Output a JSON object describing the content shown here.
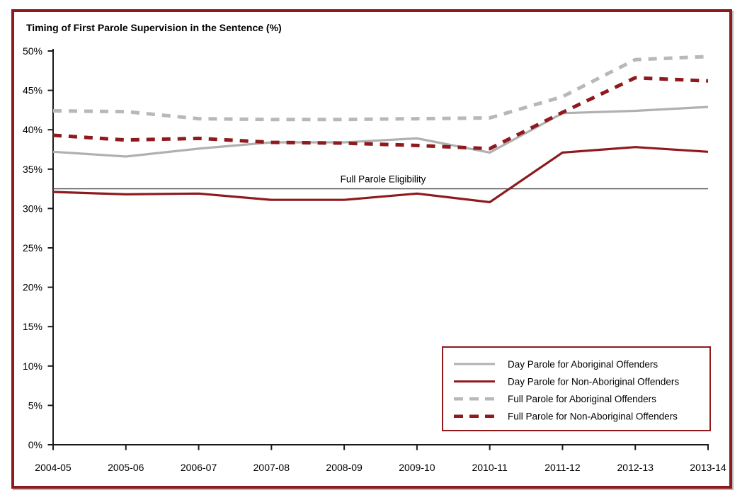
{
  "title": "Timing of First Parole Supervision in the Sentence (%)",
  "frame": {
    "border_color": "#8E1A1D",
    "background": "#FFFFFF"
  },
  "chart_data": {
    "type": "line",
    "title": "Timing of First Parole Supervision in the Sentence (%)",
    "xlabel": "",
    "ylabel": "",
    "grid": false,
    "categories": [
      "2004-05",
      "2005-06",
      "2006-07",
      "2007-08",
      "2008-09",
      "2009-10",
      "2010-11",
      "2011-12",
      "2012-13",
      "2013-14"
    ],
    "series": [
      {
        "name": "Day Parole for Aboriginal Offenders",
        "color": "#B0B0B0",
        "style": "solid",
        "values": [
          37.2,
          36.6,
          37.6,
          38.4,
          38.4,
          38.9,
          37.1,
          42.1,
          42.4,
          42.9
        ]
      },
      {
        "name": "Day Parole for Non-Aboriginal Offenders",
        "color": "#8E1A1D",
        "style": "solid",
        "values": [
          32.1,
          31.8,
          31.9,
          31.1,
          31.1,
          31.9,
          30.8,
          37.1,
          37.8,
          37.2
        ]
      },
      {
        "name": "Full Parole for Aboriginal Offenders",
        "color": "#B8B8B8",
        "style": "dashed",
        "values": [
          42.4,
          42.3,
          41.4,
          41.3,
          41.3,
          41.4,
          41.5,
          44.2,
          48.9,
          49.3
        ]
      },
      {
        "name": "Full Parole for Non-Aboriginal Offenders",
        "color": "#8E1A1D",
        "style": "dashed",
        "values": [
          39.3,
          38.7,
          38.9,
          38.4,
          38.3,
          38.0,
          37.6,
          42.2,
          46.6,
          46.2
        ]
      }
    ],
    "reference_line": {
      "label": "Full Parole Eligibility",
      "value": 32.5,
      "color": "#4D4D4D"
    },
    "y_axis": {
      "min": 0,
      "max": 50,
      "step": 5,
      "ylim": [
        0,
        50
      ],
      "tick_labels": [
        "0%",
        "5%",
        "10%",
        "15%",
        "20%",
        "25%",
        "30%",
        "35%",
        "40%",
        "45%",
        "50%"
      ]
    },
    "axis_color": "#1A1A1A",
    "legend": {
      "position": "bottom-right",
      "border_color": "#8E1A1D",
      "background": "#FFFFFF"
    }
  }
}
